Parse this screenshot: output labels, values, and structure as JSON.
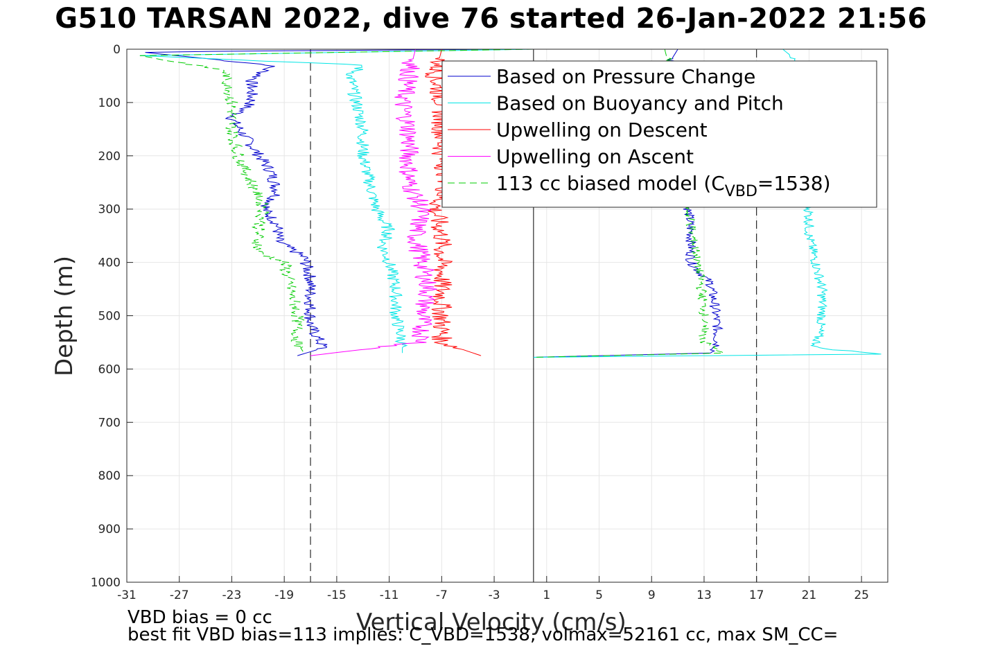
{
  "title": "G510 TARSAN 2022, dive 76 started 26-Jan-2022 21:56",
  "footer": {
    "line1": "VBD bias = 0 cc",
    "line2": "best fit VBD bias=113 implies: C_VBD=1538, volmax=52161 cc, max SM_CC="
  },
  "chart_data": {
    "type": "line",
    "title": "G510 TARSAN 2022, dive 76 started 26-Jan-2022 21:56",
    "xlabel": "Vertical Velocity (cm/s)",
    "ylabel": "Depth (m)",
    "xlim": [
      -31,
      27
    ],
    "ylim": [
      0,
      1000
    ],
    "y_reversed": true,
    "grid": true,
    "legend_position": "top-right",
    "xticks": [
      -31,
      -27,
      -23,
      -19,
      -15,
      -11,
      -7,
      -3,
      1,
      5,
      9,
      13,
      17,
      21,
      25
    ],
    "yticks": [
      0,
      100,
      200,
      300,
      400,
      500,
      600,
      700,
      800,
      900,
      1000
    ],
    "vertical_lines": [
      {
        "x": -17,
        "style": "dashed"
      },
      {
        "x": 0,
        "style": "solid"
      },
      {
        "x": 17,
        "style": "dashed"
      }
    ],
    "series": [
      {
        "name": "Based on Pressure Change",
        "color": "#0000cc",
        "style": "solid",
        "descent": {
          "depth": [
            0,
            5,
            30,
            60,
            100,
            130,
            180,
            230,
            270,
            300,
            330,
            360,
            390,
            430,
            470,
            520,
            560,
            575
          ],
          "velocity": [
            -2,
            -30,
            -20,
            -21.5,
            -21.5,
            -23,
            -21.5,
            -20,
            -19.5,
            -20.5,
            -19.5,
            -19.5,
            -17.5,
            -17,
            -17,
            -17,
            -16,
            -18
          ]
        },
        "ascent": {
          "depth": [
            0,
            20,
            60,
            100,
            150,
            200,
            250,
            300,
            350,
            400,
            440,
            480,
            520,
            560,
            570,
            578
          ],
          "velocity": [
            11,
            10.5,
            11,
            11.3,
            11.5,
            11.3,
            11.5,
            11.8,
            12,
            12,
            13.5,
            13.8,
            14,
            14,
            13.5,
            0
          ]
        }
      },
      {
        "name": "Based on Buoyancy and Pitch",
        "color": "#00e5e5",
        "style": "solid",
        "descent": {
          "depth": [
            0,
            12,
            30,
            50,
            100,
            150,
            200,
            250,
            300,
            340,
            370,
            400,
            450,
            500,
            550,
            570
          ],
          "velocity": [
            0,
            -30,
            -13,
            -14,
            -13.5,
            -13,
            -13,
            -12.5,
            -12,
            -11,
            -11.5,
            -11,
            -10.5,
            -10.5,
            -10,
            -10
          ]
        },
        "ascent": {
          "depth": [
            0,
            10,
            100,
            200,
            300,
            350,
            400,
            450,
            500,
            560,
            572,
            578
          ],
          "velocity": [
            19,
            19.5,
            20.5,
            20.5,
            21,
            21,
            21.5,
            22,
            22,
            21.5,
            26.5,
            0
          ]
        }
      },
      {
        "name": "Upwelling on Descent",
        "color": "#ff0000",
        "style": "solid",
        "depth": [
          0,
          50,
          100,
          150,
          200,
          250,
          300,
          350,
          400,
          450,
          500,
          550,
          575
        ],
        "velocity": [
          -7,
          -7.5,
          -7,
          -7,
          -7,
          -6.5,
          -7.5,
          -7,
          -7,
          -7,
          -7,
          -7,
          -4
        ]
      },
      {
        "name": "Upwelling on Ascent",
        "color": "#ff00ff",
        "style": "solid",
        "depth": [
          0,
          50,
          100,
          150,
          200,
          250,
          300,
          350,
          400,
          450,
          500,
          550,
          575
        ],
        "velocity": [
          -9,
          -9.5,
          -10,
          -9.5,
          -9.5,
          -9.5,
          -8.5,
          -9,
          -8.5,
          -8,
          -8.5,
          -8.5,
          -17
        ]
      },
      {
        "name": "113 cc biased model (C_VBD=1538)",
        "color": "#00cc00",
        "style": "dashed",
        "descent": {
          "depth": [
            0,
            12,
            40,
            100,
            150,
            200,
            250,
            300,
            340,
            380,
            400,
            450,
            500,
            550,
            570
          ],
          "velocity": [
            0,
            -30,
            -23.5,
            -23,
            -23,
            -22.5,
            -21.5,
            -20.5,
            -21,
            -21,
            -19,
            -18.5,
            -18,
            -18,
            -17.5
          ]
        },
        "ascent": {
          "depth": [
            0,
            100,
            200,
            300,
            400,
            450,
            500,
            550,
            570,
            578
          ],
          "velocity": [
            10,
            11,
            11.3,
            11.8,
            12.5,
            12.8,
            13,
            13,
            14.5,
            0
          ]
        }
      }
    ],
    "legend": [
      {
        "label": "Based on Pressure Change",
        "color": "#0000cc",
        "dash": ""
      },
      {
        "label": "Based on Buoyancy and Pitch",
        "color": "#00e5e5",
        "dash": ""
      },
      {
        "label": "Upwelling on Descent",
        "color": "#ff0000",
        "dash": ""
      },
      {
        "label": "Upwelling on Ascent",
        "color": "#ff00ff",
        "dash": ""
      },
      {
        "label_main": "113 cc biased model (C",
        "label_sub": "VBD",
        "label_end": "=1538)",
        "color": "#00cc00",
        "dash": "10,6"
      }
    ]
  }
}
